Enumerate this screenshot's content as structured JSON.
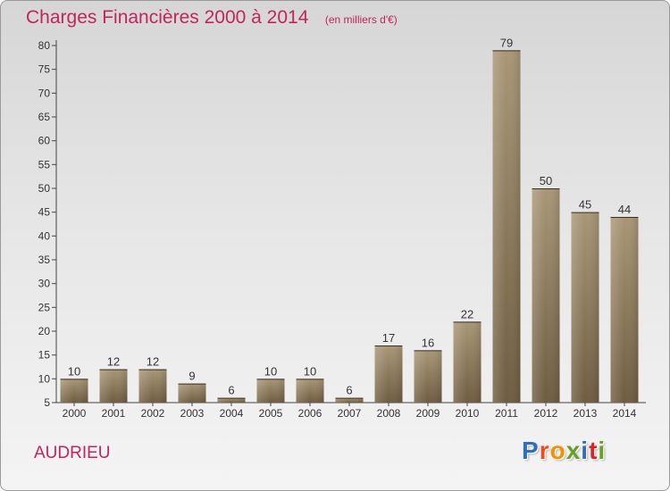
{
  "header": {
    "title": "Charges Financières 2000 à 2014",
    "unit": "(en milliers d'€)"
  },
  "footer": {
    "commune": "AUDRIEU",
    "logo_text": "Proxiti"
  },
  "colors": {
    "title": "#c2255c",
    "bar_light": "#a89676",
    "bar_dark": "#6e5c40",
    "logo_letters": [
      "#2f6fb7",
      "#e94e1b",
      "#f39200",
      "#66a124",
      "#2f6fb7",
      "#d8232a",
      "#66a124"
    ]
  },
  "chart_data": {
    "type": "bar",
    "title": "Charges Financières 2000 à 2014",
    "subtitle": "(en milliers d'€)",
    "xlabel": "",
    "ylabel": "",
    "categories": [
      "2000",
      "2001",
      "2002",
      "2003",
      "2004",
      "2005",
      "2006",
      "2007",
      "2008",
      "2009",
      "2010",
      "2011",
      "2012",
      "2013",
      "2014"
    ],
    "values": [
      10,
      12,
      12,
      9,
      6,
      10,
      10,
      6,
      17,
      16,
      22,
      79,
      50,
      45,
      44
    ],
    "ylim": [
      5,
      80
    ],
    "yticks": [
      5,
      10,
      15,
      20,
      25,
      30,
      35,
      40,
      45,
      50,
      55,
      60,
      65,
      70,
      75,
      80
    ],
    "grid": false,
    "data_labels": true
  }
}
